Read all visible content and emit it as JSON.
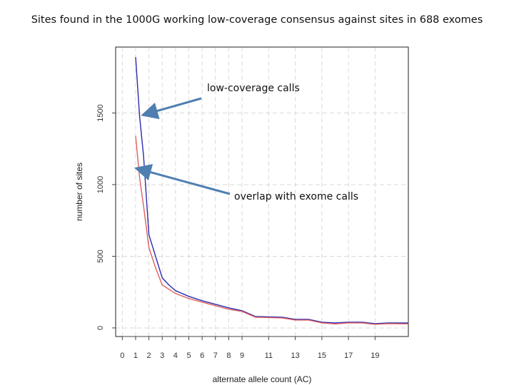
{
  "slide": {
    "title": "Sites found in the 1000G working low-coverage consensus against sites in 688 exomes"
  },
  "chart_data": {
    "type": "line",
    "title": "",
    "xlabel": "alternate allele count (AC)",
    "ylabel": "number of sites",
    "xlim": [
      -0.5,
      21.5
    ],
    "ylim": [
      -60,
      1960
    ],
    "x_ticks": [
      0,
      1,
      2,
      3,
      4,
      5,
      6,
      7,
      8,
      9,
      11,
      13,
      15,
      17,
      19
    ],
    "y_ticks": [
      0,
      500,
      1000,
      1500
    ],
    "grid": true,
    "series": [
      {
        "name": "low-coverage calls",
        "color": "#2b2bb0",
        "x": [
          1,
          1.3,
          1.6,
          2,
          2.5,
          3,
          3.5,
          4,
          5,
          6,
          7,
          8,
          9,
          10,
          12,
          13,
          14,
          15,
          16,
          17,
          18,
          19,
          20,
          21.5
        ],
        "y": [
          1890,
          1480,
          1200,
          650,
          500,
          350,
          300,
          260,
          220,
          190,
          165,
          140,
          120,
          80,
          75,
          60,
          60,
          40,
          35,
          40,
          40,
          30,
          35,
          35
        ]
      },
      {
        "name": "overlap with exome calls",
        "color": "#e06060",
        "x": [
          1,
          1.3,
          1.6,
          2,
          2.5,
          3,
          3.5,
          4,
          5,
          6,
          7,
          8,
          9,
          10,
          12,
          13,
          14,
          15,
          16,
          17,
          18,
          19,
          20,
          21.5
        ],
        "y": [
          1340,
          1050,
          850,
          560,
          420,
          300,
          270,
          240,
          205,
          180,
          155,
          130,
          115,
          75,
          70,
          55,
          55,
          35,
          28,
          35,
          35,
          25,
          30,
          28
        ]
      }
    ],
    "annotations": [
      {
        "text": "low-coverage calls",
        "points_to": {
          "x": 1.7,
          "y": 1490
        }
      },
      {
        "text": "overlap with exome calls",
        "points_to": {
          "x": 1.2,
          "y": 1110
        }
      }
    ]
  }
}
